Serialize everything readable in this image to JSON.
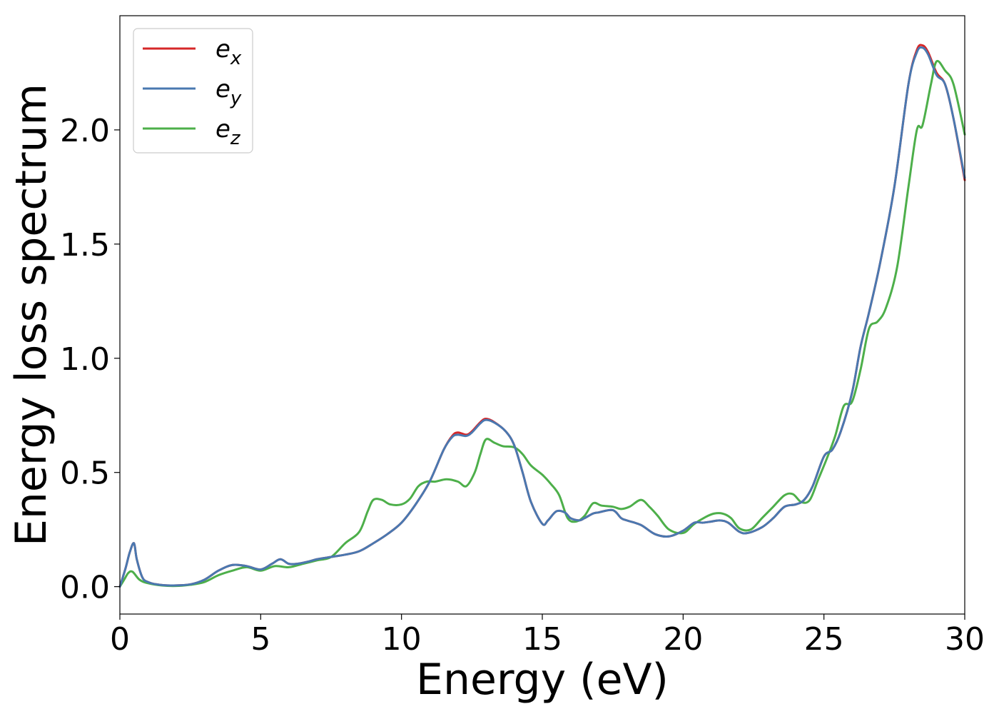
{
  "chart_data": {
    "type": "line",
    "title": "",
    "xlabel": "Energy (eV)",
    "ylabel": "Energy loss spectrum",
    "xlim": [
      0,
      30
    ],
    "ylim": [
      -0.12,
      2.5
    ],
    "xticks": [
      0,
      5,
      10,
      15,
      20,
      25,
      30
    ],
    "xtick_labels": [
      "0",
      "5",
      "10",
      "15",
      "20",
      "25",
      "30"
    ],
    "yticks": [
      0.0,
      0.5,
      1.0,
      1.5,
      2.0
    ],
    "ytick_labels": [
      "0.0",
      "0.5",
      "1.0",
      "1.5",
      "2.0"
    ],
    "grid": false,
    "legend_position": "top-left",
    "series": [
      {
        "name": "e_x",
        "legend_base": "e",
        "legend_sub": "x",
        "color": "#d62728",
        "x": [
          0,
          0.2,
          0.35,
          0.5,
          0.6,
          0.8,
          1.0,
          1.3,
          1.8,
          2.5,
          3.0,
          3.5,
          4.0,
          4.5,
          5.0,
          5.4,
          5.7,
          6.0,
          6.3,
          6.7,
          7.0,
          7.5,
          8.0,
          8.5,
          9.0,
          9.5,
          10.0,
          10.5,
          11.0,
          11.5,
          11.8,
          12.0,
          12.3,
          12.5,
          12.8,
          13.0,
          13.3,
          13.7,
          14.0,
          14.3,
          14.6,
          15.0,
          15.2,
          15.5,
          15.8,
          16.0,
          16.3,
          16.5,
          16.8,
          17.0,
          17.5,
          17.8,
          18.0,
          18.5,
          19.0,
          19.5,
          20.0,
          20.4,
          20.7,
          21.0,
          21.3,
          21.6,
          22.0,
          22.3,
          22.8,
          23.2,
          23.6,
          24.0,
          24.3,
          24.6,
          25.0,
          25.3,
          25.6,
          26.0,
          26.3,
          26.6,
          27.0,
          27.5,
          28.0,
          28.3,
          28.5,
          28.7,
          29.0,
          29.3,
          29.6,
          30.0
        ],
        "values": [
          0.0,
          0.08,
          0.15,
          0.19,
          0.12,
          0.04,
          0.02,
          0.01,
          0.005,
          0.01,
          0.03,
          0.07,
          0.095,
          0.09,
          0.075,
          0.1,
          0.12,
          0.1,
          0.1,
          0.11,
          0.12,
          0.13,
          0.14,
          0.155,
          0.19,
          0.23,
          0.28,
          0.36,
          0.46,
          0.6,
          0.66,
          0.675,
          0.665,
          0.68,
          0.72,
          0.735,
          0.72,
          0.68,
          0.62,
          0.5,
          0.37,
          0.275,
          0.29,
          0.33,
          0.325,
          0.3,
          0.29,
          0.3,
          0.32,
          0.325,
          0.335,
          0.3,
          0.29,
          0.27,
          0.23,
          0.22,
          0.245,
          0.28,
          0.28,
          0.285,
          0.29,
          0.28,
          0.24,
          0.235,
          0.26,
          0.3,
          0.35,
          0.36,
          0.38,
          0.44,
          0.57,
          0.6,
          0.68,
          0.85,
          1.05,
          1.2,
          1.42,
          1.75,
          2.2,
          2.35,
          2.37,
          2.34,
          2.25,
          2.2,
          2.05,
          1.78
        ]
      },
      {
        "name": "e_y",
        "legend_base": "e",
        "legend_sub": "y",
        "color": "#4a78b0",
        "x": [
          0,
          0.2,
          0.35,
          0.5,
          0.6,
          0.8,
          1.0,
          1.3,
          1.8,
          2.5,
          3.0,
          3.5,
          4.0,
          4.5,
          5.0,
          5.4,
          5.7,
          6.0,
          6.3,
          6.7,
          7.0,
          7.5,
          8.0,
          8.5,
          9.0,
          9.5,
          10.0,
          10.5,
          11.0,
          11.5,
          11.8,
          12.0,
          12.3,
          12.5,
          12.8,
          13.0,
          13.3,
          13.7,
          14.0,
          14.3,
          14.6,
          15.0,
          15.2,
          15.5,
          15.8,
          16.0,
          16.3,
          16.5,
          16.8,
          17.0,
          17.5,
          17.8,
          18.0,
          18.5,
          19.0,
          19.5,
          20.0,
          20.4,
          20.7,
          21.0,
          21.3,
          21.6,
          22.0,
          22.3,
          22.8,
          23.2,
          23.6,
          24.0,
          24.3,
          24.6,
          25.0,
          25.3,
          25.6,
          26.0,
          26.3,
          26.6,
          27.0,
          27.5,
          28.0,
          28.3,
          28.5,
          28.7,
          29.0,
          29.3,
          29.6,
          30.0
        ],
        "values": [
          0.0,
          0.08,
          0.15,
          0.19,
          0.12,
          0.04,
          0.02,
          0.01,
          0.005,
          0.01,
          0.03,
          0.07,
          0.095,
          0.09,
          0.075,
          0.1,
          0.12,
          0.1,
          0.1,
          0.11,
          0.12,
          0.13,
          0.14,
          0.155,
          0.19,
          0.23,
          0.28,
          0.36,
          0.46,
          0.6,
          0.655,
          0.665,
          0.66,
          0.675,
          0.715,
          0.73,
          0.718,
          0.68,
          0.62,
          0.5,
          0.37,
          0.275,
          0.29,
          0.33,
          0.325,
          0.3,
          0.29,
          0.3,
          0.32,
          0.325,
          0.335,
          0.3,
          0.29,
          0.27,
          0.23,
          0.22,
          0.245,
          0.28,
          0.28,
          0.285,
          0.29,
          0.28,
          0.24,
          0.235,
          0.26,
          0.3,
          0.35,
          0.36,
          0.38,
          0.44,
          0.57,
          0.6,
          0.68,
          0.85,
          1.05,
          1.2,
          1.42,
          1.75,
          2.2,
          2.34,
          2.36,
          2.33,
          2.24,
          2.2,
          2.05,
          1.79
        ]
      },
      {
        "name": "e_z",
        "legend_base": "e",
        "legend_sub": "z",
        "color": "#4daf4a",
        "x": [
          0,
          0.15,
          0.3,
          0.45,
          0.7,
          1.0,
          1.5,
          2.0,
          2.5,
          3.0,
          3.5,
          4.0,
          4.5,
          5.0,
          5.5,
          6.0,
          6.5,
          7.0,
          7.5,
          8.0,
          8.5,
          8.8,
          9.0,
          9.3,
          9.6,
          10.0,
          10.3,
          10.6,
          10.9,
          11.2,
          11.6,
          12.0,
          12.3,
          12.6,
          12.8,
          13.0,
          13.3,
          13.6,
          14.0,
          14.3,
          14.6,
          15.0,
          15.3,
          15.6,
          15.9,
          16.2,
          16.5,
          16.8,
          17.1,
          17.5,
          17.8,
          18.1,
          18.5,
          18.8,
          19.1,
          19.5,
          20.0,
          20.4,
          20.8,
          21.1,
          21.4,
          21.7,
          22.0,
          22.4,
          22.8,
          23.2,
          23.6,
          23.9,
          24.2,
          24.5,
          24.8,
          25.1,
          25.4,
          25.7,
          26.0,
          26.3,
          26.6,
          26.9,
          27.2,
          27.6,
          28.0,
          28.3,
          28.5,
          28.8,
          29.0,
          29.3,
          29.6,
          30.0
        ],
        "values": [
          0.0,
          0.03,
          0.06,
          0.065,
          0.03,
          0.015,
          0.005,
          0.003,
          0.008,
          0.02,
          0.05,
          0.07,
          0.085,
          0.07,
          0.09,
          0.085,
          0.1,
          0.115,
          0.13,
          0.19,
          0.24,
          0.33,
          0.38,
          0.38,
          0.36,
          0.36,
          0.385,
          0.44,
          0.46,
          0.46,
          0.47,
          0.46,
          0.44,
          0.5,
          0.58,
          0.645,
          0.63,
          0.615,
          0.61,
          0.58,
          0.53,
          0.49,
          0.45,
          0.4,
          0.3,
          0.285,
          0.31,
          0.365,
          0.355,
          0.35,
          0.34,
          0.35,
          0.38,
          0.35,
          0.31,
          0.25,
          0.235,
          0.275,
          0.305,
          0.32,
          0.32,
          0.3,
          0.255,
          0.25,
          0.3,
          0.35,
          0.4,
          0.405,
          0.37,
          0.38,
          0.47,
          0.56,
          0.66,
          0.79,
          0.81,
          0.95,
          1.13,
          1.16,
          1.22,
          1.4,
          1.75,
          2.0,
          2.02,
          2.2,
          2.3,
          2.26,
          2.2,
          1.98
        ]
      }
    ]
  }
}
